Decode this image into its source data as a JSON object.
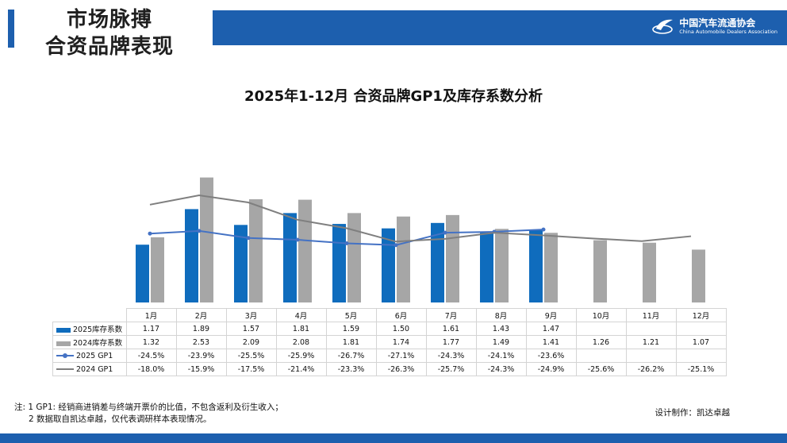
{
  "header": {
    "title_line1": "市场脉搏",
    "title_line2": "合资品牌表现",
    "logo_cn": "中国汽车流通协会",
    "logo_en": "China Automobile Dealers Association",
    "colors": {
      "brand_blue": "#1d5fae"
    }
  },
  "chart_data": {
    "type": "bar",
    "title": "2025年1-12月 合资品牌GP1及库存系数分析",
    "categories": [
      "1月",
      "2月",
      "3月",
      "4月",
      "5月",
      "6月",
      "7月",
      "8月",
      "9月",
      "10月",
      "11月",
      "12月"
    ],
    "series": [
      {
        "name": "2025库存系数",
        "kind": "bar",
        "color": "#0f6cbd",
        "values": [
          1.17,
          1.89,
          1.57,
          1.81,
          1.59,
          1.5,
          1.61,
          1.43,
          1.47,
          null,
          null,
          null
        ],
        "labels": [
          "1.17",
          "1.89",
          "1.57",
          "1.81",
          "1.59",
          "1.50",
          "1.61",
          "1.43",
          "1.47",
          "",
          "",
          ""
        ]
      },
      {
        "name": "2024库存系数",
        "kind": "bar",
        "color": "#a6a6a6",
        "values": [
          1.32,
          2.53,
          2.09,
          2.08,
          1.81,
          1.74,
          1.77,
          1.49,
          1.41,
          1.26,
          1.21,
          1.07
        ],
        "labels": [
          "1.32",
          "2.53",
          "2.09",
          "2.08",
          "1.81",
          "1.74",
          "1.77",
          "1.49",
          "1.41",
          "1.26",
          "1.21",
          "1.07"
        ]
      },
      {
        "name": "2025 GP1",
        "kind": "line",
        "marker": true,
        "color": "#4472c4",
        "values": [
          -24.5,
          -23.9,
          -25.5,
          -25.9,
          -26.7,
          -27.1,
          -24.3,
          -24.1,
          -23.6,
          null,
          null,
          null
        ],
        "labels": [
          "-24.5%",
          "-23.9%",
          "-25.5%",
          "-25.9%",
          "-26.7%",
          "-27.1%",
          "-24.3%",
          "-24.1%",
          "-23.6%",
          "",
          "",
          ""
        ]
      },
      {
        "name": "2024 GP1",
        "kind": "line",
        "marker": false,
        "color": "#7f7f7f",
        "values": [
          -18.0,
          -15.9,
          -17.5,
          -21.4,
          -23.3,
          -26.3,
          -25.7,
          -24.3,
          -24.9,
          -25.6,
          -26.2,
          -25.1
        ],
        "labels": [
          "-18.0%",
          "-15.9%",
          "-17.5%",
          "-21.4%",
          "-23.3%",
          "-26.3%",
          "-25.7%",
          "-24.3%",
          "-24.9%",
          "-25.6%",
          "-26.2%",
          "-25.1%"
        ]
      }
    ],
    "bar_axis_range": [
      0,
      2.7
    ],
    "line_axis_range": [
      -40,
      -10
    ],
    "grid": false,
    "legend": "data-table-below"
  },
  "footer": {
    "note_line1": "注: 1 GP1: 经销商进销差与终端开票价的比值，不包含返利及衍生收入；",
    "note_line2": "2 数据取自凯达卓越，仅代表调研样本表现情况。",
    "credit": "设计制作：凯达卓越"
  }
}
